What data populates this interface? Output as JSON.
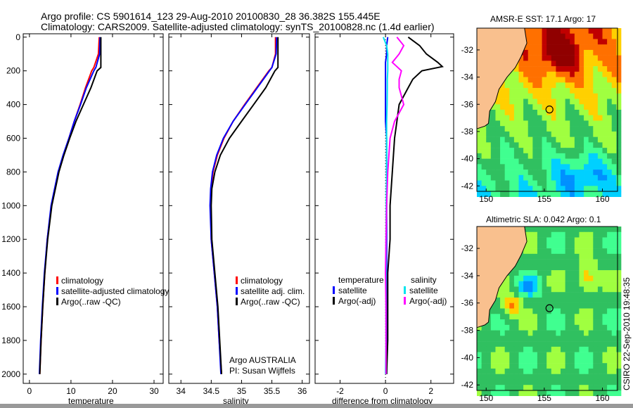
{
  "title_line1": "Argo profile: CS 5901614_123 29-Aug-2010 20100830_28 36.382S 155.445E",
  "title_line2": "Climatology: CARS2009. Satellite-adjusted climatology: synTS_20100828.nc (1.4d earlier)",
  "colors": {
    "climatology": "#ff0000",
    "satellite": "#0000ff",
    "argo": "#000000",
    "sat_sal": "#00e5ee",
    "argo_sal": "#ff00ff",
    "land": "#f9c08e"
  },
  "chart_data": [
    {
      "type": "line",
      "xlabel": "temperature",
      "ylabel": "",
      "xlim": [
        -1.5,
        32.2
      ],
      "ylim": [
        2055,
        -20
      ],
      "xticks": [
        0,
        10,
        20,
        30
      ],
      "yticks": [
        0,
        200,
        400,
        600,
        800,
        1000,
        1200,
        1400,
        1600,
        1800,
        2000
      ],
      "legend": [
        "climatology",
        "satellite-adjusted climatology",
        "Argo(..raw -QC)"
      ],
      "depth": [
        0,
        100,
        180,
        200,
        300,
        400,
        500,
        600,
        700,
        800,
        1000,
        1200,
        1400,
        1600,
        1800,
        2000
      ],
      "series": [
        {
          "name": "climatology",
          "values": [
            16.8,
            16.6,
            15.5,
            15,
            13.5,
            12.2,
            10.8,
            9.5,
            8.2,
            7,
            5.3,
            4.3,
            3.7,
            3.2,
            2.8,
            2.5
          ]
        },
        {
          "name": "satellite",
          "values": [
            17,
            16.9,
            16,
            15.5,
            13.7,
            12.3,
            10.8,
            9.5,
            8.1,
            6.9,
            5.2,
            4.3,
            3.6,
            3.1,
            2.7,
            2.4
          ]
        },
        {
          "name": "argo",
          "values": [
            17.2,
            17.2,
            17.2,
            16.3,
            14.8,
            13,
            11.2,
            9.7,
            8.3,
            7.1,
            5.4,
            4.4,
            3.7,
            3.2,
            2.8,
            2.5
          ]
        }
      ]
    },
    {
      "type": "line",
      "xlabel": "salinity",
      "xlim": [
        33.8,
        36.12
      ],
      "ylim": [
        2055,
        -20
      ],
      "xticks": [
        34,
        34.5,
        35,
        35.5,
        36
      ],
      "legend": [
        "climatology",
        "satellite adj. clim.",
        "Argo(..raw -QC)"
      ],
      "annotation": [
        "Argo AUSTRALIA",
        "PI: Susan Wijffels"
      ],
      "depth": [
        0,
        100,
        180,
        200,
        300,
        400,
        500,
        600,
        700,
        800,
        900,
        1000,
        1200,
        1400,
        1600,
        1800,
        2000
      ],
      "series": [
        {
          "name": "climatology",
          "values": [
            35.56,
            35.56,
            35.5,
            35.45,
            35.25,
            35.05,
            34.86,
            34.71,
            34.6,
            34.53,
            34.5,
            34.49,
            34.5,
            34.55,
            34.6,
            34.63,
            34.67
          ]
        },
        {
          "name": "satellite",
          "values": [
            35.58,
            35.57,
            35.5,
            35.46,
            35.26,
            35.06,
            34.86,
            34.7,
            34.59,
            34.52,
            34.49,
            34.48,
            34.5,
            34.55,
            34.6,
            34.63,
            34.66
          ]
        },
        {
          "name": "argo",
          "values": [
            35.6,
            35.6,
            35.6,
            35.55,
            35.4,
            35.2,
            35.0,
            34.8,
            34.65,
            34.56,
            34.51,
            34.5,
            34.51,
            34.56,
            34.61,
            34.64,
            34.67
          ]
        }
      ]
    },
    {
      "type": "line",
      "xlabel": "difference from climatology",
      "xlim": [
        -3.1,
        3.0
      ],
      "ylim": [
        2055,
        -20
      ],
      "xticks": [
        -2,
        0,
        2
      ],
      "legend": {
        "temperature": "temperature",
        "salinity": "salinity",
        "sat": "satellite",
        "argo": "Argo(-adj)"
      },
      "depth": [
        0,
        50,
        100,
        150,
        175,
        200,
        250,
        300,
        400,
        500,
        600,
        800,
        1000,
        1200,
        1400,
        1600,
        1800,
        2000
      ],
      "series": [
        {
          "name": "temperature satellite",
          "values": [
            0.1,
            0.05,
            0.05,
            0.0,
            0.0,
            0.0,
            0.0,
            0.0,
            0.0,
            0.0,
            0.05,
            0.05,
            0.05,
            0.05,
            0.05,
            0.05,
            0.05,
            0.05
          ]
        },
        {
          "name": "temperature Argo",
          "values": [
            1.0,
            1.5,
            1.8,
            2.3,
            2.5,
            1.6,
            1.2,
            1.0,
            0.6,
            0.5,
            0.4,
            0.3,
            0.2,
            0.2,
            0.1,
            0.1,
            0.1,
            0.05
          ]
        },
        {
          "name": "salinity satellite",
          "values": [
            -0.1,
            0.05,
            0.1,
            0.1,
            0.1,
            0.1,
            0.08,
            0.08,
            0.07,
            0.05,
            0.05,
            0.05,
            0.03,
            0.02,
            0.02,
            0.02,
            0.02,
            0.0
          ]
        },
        {
          "name": "salinity Argo",
          "values": [
            0.5,
            0.8,
            0.6,
            0.3,
            0.5,
            0.7,
            0.6,
            0.6,
            0.8,
            0.4,
            0.2,
            0.1,
            0.05,
            0.02,
            0.0,
            0.02,
            0.02,
            0.02
          ]
        }
      ]
    }
  ],
  "maps": [
    {
      "title": "AMSR-E SST: 17.1 Argo: 17",
      "kind": "sst"
    },
    {
      "title": "Altimetric SLA: 0.042 Argo: 0.1",
      "kind": "sla"
    }
  ],
  "map_axes": {
    "lon_ticks": [
      150,
      155,
      160
    ],
    "lat_ticks": [
      -32,
      -34,
      -36,
      -38,
      -40,
      -42
    ],
    "argo_lon": 155.445,
    "argo_lat": -36.382
  },
  "stamp": "CSIRO 22-Sep-2010 19:48:35"
}
